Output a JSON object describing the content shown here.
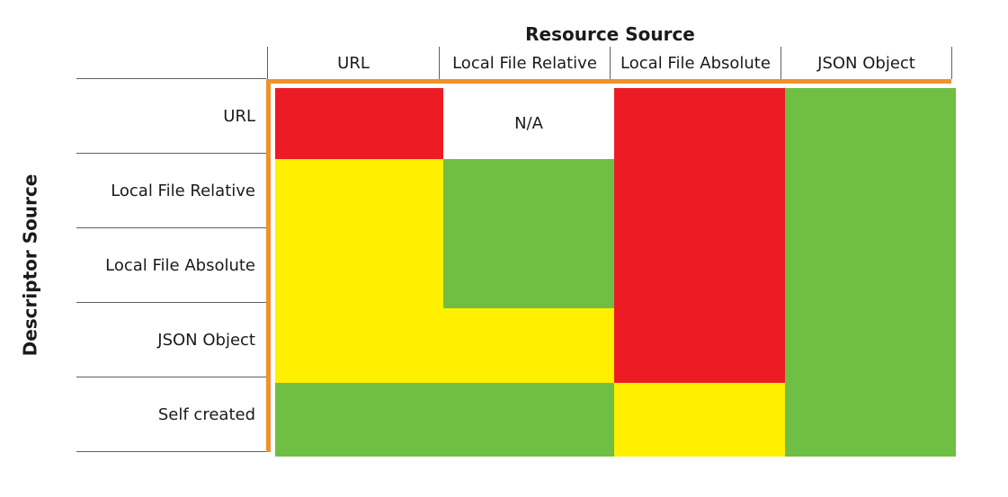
{
  "title": "Resource Source",
  "y_axis_title": "Descriptor Source",
  "na_label": "N/A",
  "colors": {
    "red": "#ED1C24",
    "yellow": "#FFF000",
    "green": "#6FBF44",
    "na": "#FFFFFF",
    "accent_border": "#F0912C",
    "line_gray": "#606060"
  },
  "chart_data": {
    "type": "heatmap",
    "title": "Resource Source",
    "xlabel": "Resource Source",
    "ylabel": "Descriptor Source",
    "x_categories": [
      "URL",
      "Local File Relative",
      "Local File Absolute",
      "JSON Object"
    ],
    "y_categories": [
      "URL",
      "Local File Relative",
      "Local File Absolute",
      "JSON Object",
      "Self created"
    ],
    "values": [
      [
        "red",
        "na",
        "red",
        "green"
      ],
      [
        "yellow",
        "green",
        "red",
        "green"
      ],
      [
        "yellow",
        "green",
        "red",
        "green"
      ],
      [
        "yellow",
        "yellow",
        "red",
        "green"
      ],
      [
        "green",
        "green",
        "yellow",
        "green"
      ]
    ],
    "cell_text": [
      [
        "",
        "N/A",
        "",
        ""
      ],
      [
        "",
        "",
        "",
        ""
      ],
      [
        "",
        "",
        "",
        ""
      ],
      [
        "",
        "",
        "",
        ""
      ],
      [
        "",
        "",
        "",
        ""
      ]
    ],
    "legend_position": "none",
    "grid": false,
    "notes": "Compatibility matrix; cells colored red/yellow/green, one white N/A cell; orange accent border on top and left edges of matrix"
  }
}
